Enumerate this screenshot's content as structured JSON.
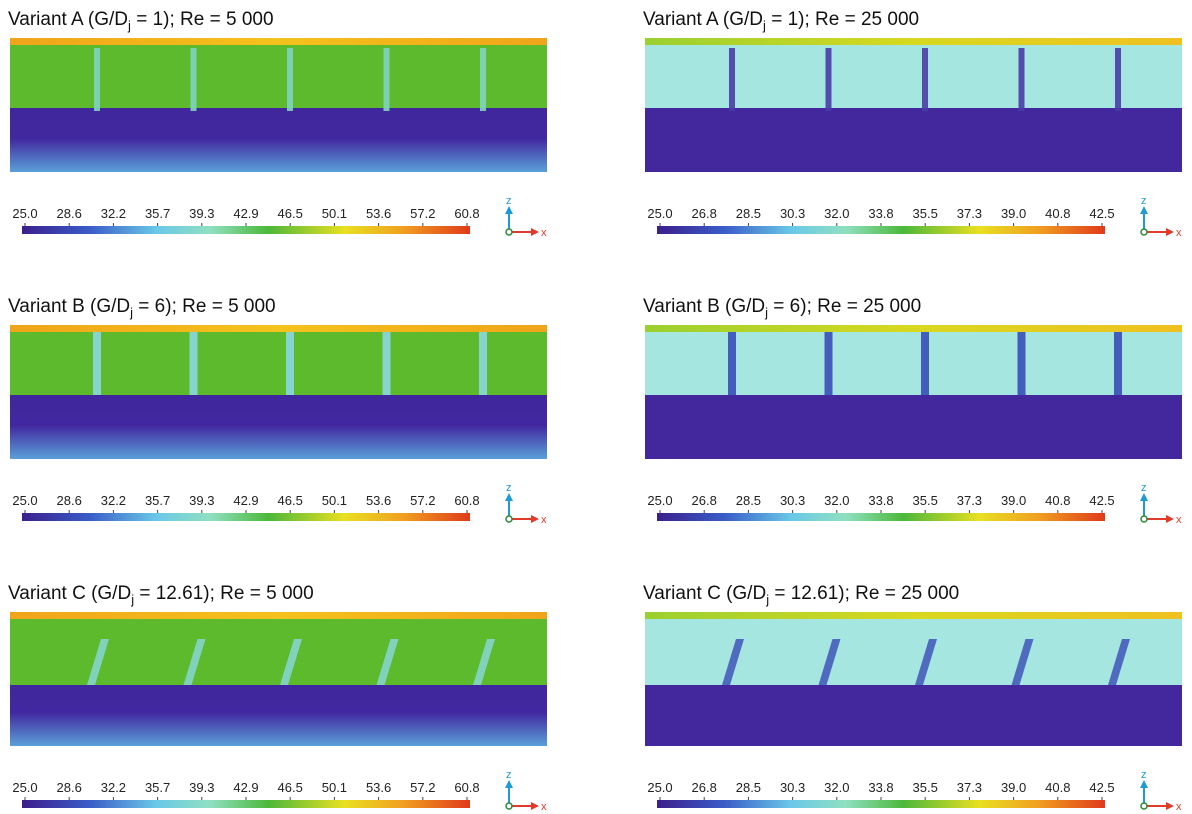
{
  "panels": [
    {
      "title": {
        "prefix": "Variant A (G/D",
        "sub": "j",
        "suffix": " = 1); Re = 5 000"
      },
      "scale": "low",
      "layout": "A",
      "colorbar": [
        "25.0",
        "28.6",
        "32.2",
        "35.7",
        "39.3",
        "42.9",
        "46.5",
        "50.1",
        "53.6",
        "57.2",
        "60.8"
      ],
      "axes": {
        "z": "z",
        "x": "x"
      }
    },
    {
      "title": {
        "prefix": "Variant A (G/D",
        "sub": "j",
        "suffix": " = 1); Re = 25 000"
      },
      "scale": "high",
      "layout": "A",
      "colorbar": [
        "25.0",
        "26.8",
        "28.5",
        "30.3",
        "32.0",
        "33.8",
        "35.5",
        "37.3",
        "39.0",
        "40.8",
        "42.5"
      ],
      "axes": {
        "z": "z",
        "x": "x"
      }
    },
    {
      "title": {
        "prefix": "Variant B (G/D",
        "sub": "j",
        "suffix": " = 6); Re = 5 000"
      },
      "scale": "low",
      "layout": "B",
      "colorbar": [
        "25.0",
        "28.6",
        "32.2",
        "35.7",
        "39.3",
        "42.9",
        "46.5",
        "50.1",
        "53.6",
        "57.2",
        "60.8"
      ],
      "axes": {
        "z": "z",
        "x": "x"
      }
    },
    {
      "title": {
        "prefix": "Variant B (G/D",
        "sub": "j",
        "suffix": " = 6); Re = 25 000"
      },
      "scale": "high",
      "layout": "B",
      "colorbar": [
        "25.0",
        "26.8",
        "28.5",
        "30.3",
        "32.0",
        "33.8",
        "35.5",
        "37.3",
        "39.0",
        "40.8",
        "42.5"
      ],
      "axes": {
        "z": "z",
        "x": "x"
      }
    },
    {
      "title": {
        "prefix": "Variant C (G/D",
        "sub": "j",
        "suffix": " = 12.61); Re = 5 000"
      },
      "scale": "low",
      "layout": "C",
      "colorbar": [
        "25.0",
        "28.6",
        "32.2",
        "35.7",
        "39.3",
        "42.9",
        "46.5",
        "50.1",
        "53.6",
        "57.2",
        "60.8"
      ],
      "axes": {
        "z": "z",
        "x": "x"
      }
    },
    {
      "title": {
        "prefix": "Variant C (G/D",
        "sub": "j",
        "suffix": " = 12.61); Re = 25 000"
      },
      "scale": "high",
      "layout": "C",
      "colorbar": [
        "25.0",
        "26.8",
        "28.5",
        "30.3",
        "32.0",
        "33.8",
        "35.5",
        "37.3",
        "39.0",
        "40.8",
        "42.5"
      ],
      "axes": {
        "z": "z",
        "x": "x"
      }
    }
  ]
}
